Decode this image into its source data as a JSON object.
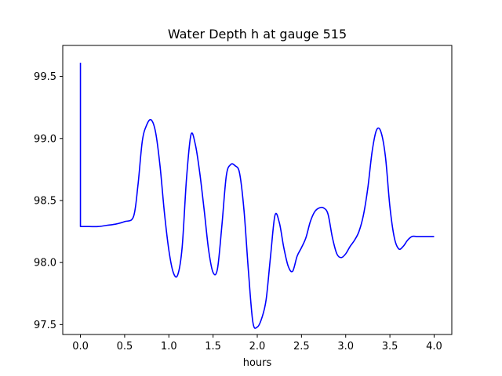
{
  "chart_data": {
    "type": "line",
    "title": "Water Depth h at gauge 515",
    "xlabel": "hours",
    "ylabel": "",
    "xlim": [
      -0.2,
      4.2
    ],
    "ylim": [
      97.42,
      99.75
    ],
    "xticks": [
      0.0,
      0.5,
      1.0,
      1.5,
      2.0,
      2.5,
      3.0,
      3.5,
      4.0
    ],
    "xtick_labels": [
      "0.0",
      "0.5",
      "1.0",
      "1.5",
      "2.0",
      "2.5",
      "3.0",
      "3.5",
      "4.0"
    ],
    "yticks": [
      97.5,
      98.0,
      98.5,
      99.0,
      99.5
    ],
    "ytick_labels": [
      "97.5",
      "98.0",
      "98.5",
      "99.0",
      "99.5"
    ],
    "grid": false,
    "series": [
      {
        "name": "",
        "color": "#0000ff",
        "x": [
          0.0,
          0.0,
          0.1,
          0.2,
          0.3,
          0.4,
          0.5,
          0.6,
          0.65,
          0.7,
          0.75,
          0.8,
          0.85,
          0.9,
          0.95,
          1.0,
          1.05,
          1.1,
          1.15,
          1.2,
          1.25,
          1.3,
          1.35,
          1.4,
          1.45,
          1.5,
          1.55,
          1.6,
          1.65,
          1.7,
          1.75,
          1.8,
          1.85,
          1.9,
          1.95,
          2.0,
          2.05,
          2.1,
          2.15,
          2.2,
          2.25,
          2.3,
          2.35,
          2.4,
          2.45,
          2.5,
          2.55,
          2.6,
          2.65,
          2.7,
          2.75,
          2.8,
          2.85,
          2.9,
          2.95,
          3.0,
          3.05,
          3.1,
          3.15,
          3.2,
          3.25,
          3.3,
          3.35,
          3.4,
          3.45,
          3.5,
          3.55,
          3.6,
          3.65,
          3.7,
          3.75,
          3.8,
          3.85,
          3.9,
          3.95,
          4.0
        ],
        "values": [
          99.61,
          98.29,
          98.29,
          98.29,
          98.3,
          98.31,
          98.33,
          98.37,
          98.62,
          98.98,
          99.11,
          99.15,
          99.05,
          98.78,
          98.4,
          98.1,
          97.92,
          97.9,
          98.12,
          98.68,
          99.03,
          98.95,
          98.72,
          98.42,
          98.1,
          97.92,
          97.95,
          98.3,
          98.7,
          98.79,
          98.78,
          98.72,
          98.42,
          97.93,
          97.52,
          97.48,
          97.55,
          97.7,
          98.05,
          98.38,
          98.32,
          98.12,
          97.97,
          97.93,
          98.05,
          98.12,
          98.2,
          98.33,
          98.41,
          98.44,
          98.44,
          98.39,
          98.2,
          98.07,
          98.04,
          98.07,
          98.13,
          98.18,
          98.25,
          98.38,
          98.6,
          98.9,
          99.07,
          99.05,
          98.85,
          98.45,
          98.2,
          98.11,
          98.13,
          98.18,
          98.21,
          98.21,
          98.21,
          98.21,
          98.21,
          98.21
        ]
      }
    ]
  }
}
